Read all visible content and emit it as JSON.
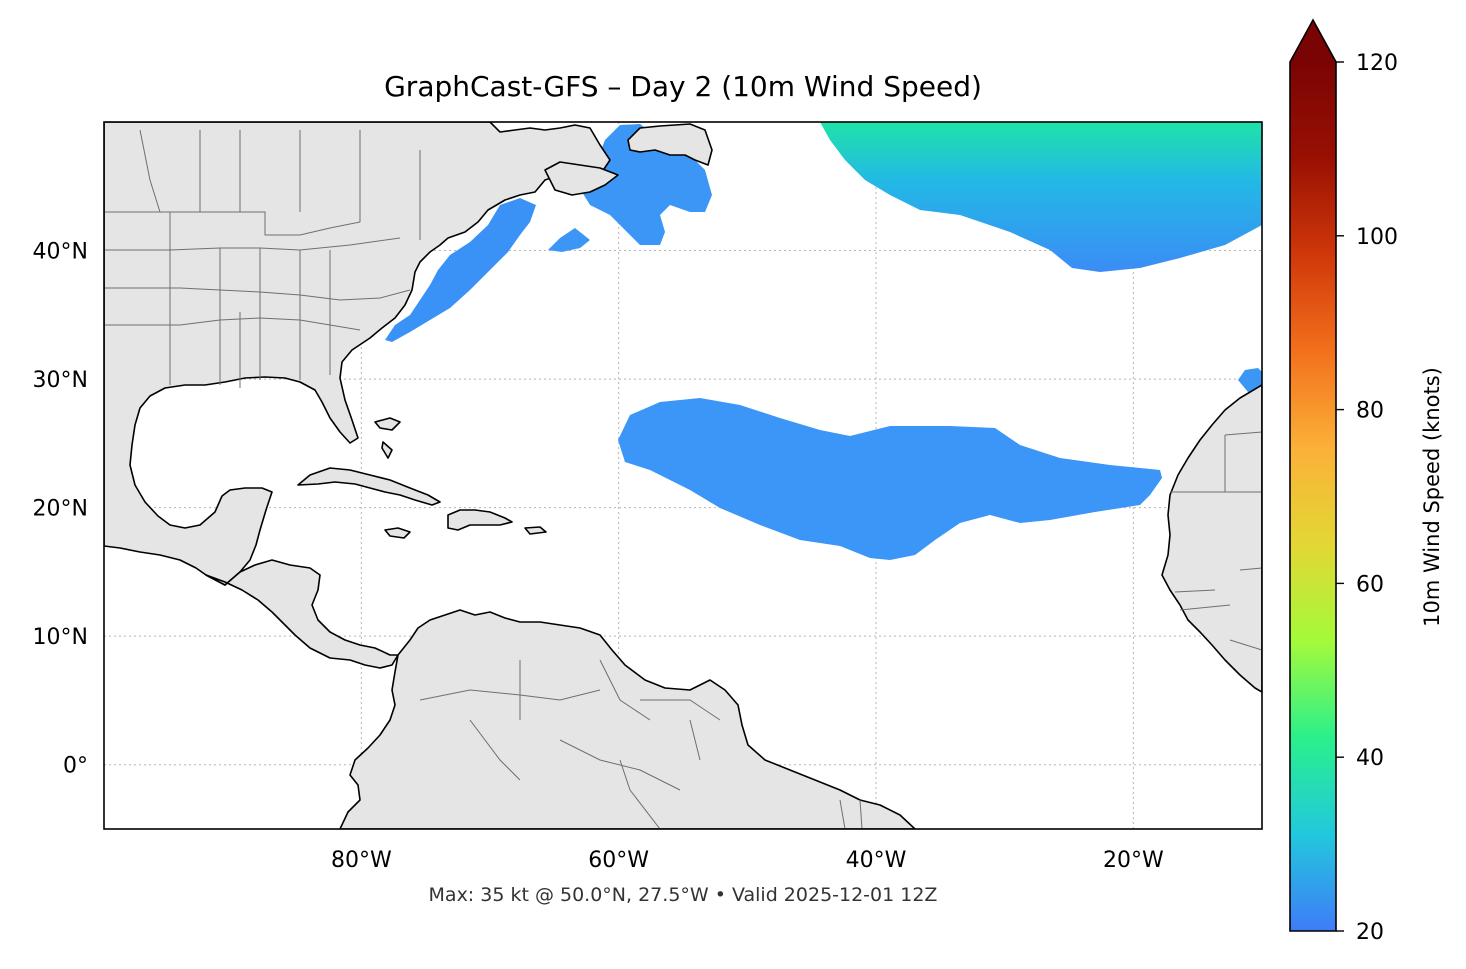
{
  "map": {
    "title": "GraphCast-GFS – Day 2 (10m Wind Speed)",
    "footer": "Max: 35 kt @ 50.0°N, 27.5°W • Valid 2025-12-01 12Z",
    "extent": {
      "lon": [
        -100,
        -10
      ],
      "lat": [
        -5,
        50
      ]
    },
    "lat_ticks": [
      {
        "value": 40,
        "label": "40°N"
      },
      {
        "value": 30,
        "label": "30°N"
      },
      {
        "value": 20,
        "label": "20°N"
      },
      {
        "value": 10,
        "label": "10°N"
      },
      {
        "value": 0,
        "label": "0°"
      }
    ],
    "lon_ticks": [
      {
        "value": -80,
        "label": "80°W"
      },
      {
        "value": -60,
        "label": "60°W"
      },
      {
        "value": -40,
        "label": "40°W"
      },
      {
        "value": -20,
        "label": "20°W"
      }
    ],
    "land_color": "#e5e5e5",
    "ocean_color": "#ffffff"
  },
  "colorbar": {
    "label": "10m Wind Speed (knots)",
    "range": [
      20,
      120
    ],
    "extend": "max",
    "ticks": [
      20,
      40,
      60,
      80,
      100,
      120
    ],
    "colormap": "turbo",
    "stops": [
      "#3e7cf8",
      "#22c8dd",
      "#2af08c",
      "#a4fa3a",
      "#e3d734",
      "#fbb138",
      "#f3701c",
      "#d0380a",
      "#991003",
      "#7a0403"
    ]
  },
  "wind_regions": [
    {
      "name": "north-atlantic-high-wind",
      "speed_kt": 30
    },
    {
      "name": "subtropical-wind-band",
      "speed_kt": 22
    },
    {
      "name": "us-east-coast-wind",
      "speed_kt": 21
    },
    {
      "name": "newfoundland-wind",
      "speed_kt": 22
    }
  ]
}
